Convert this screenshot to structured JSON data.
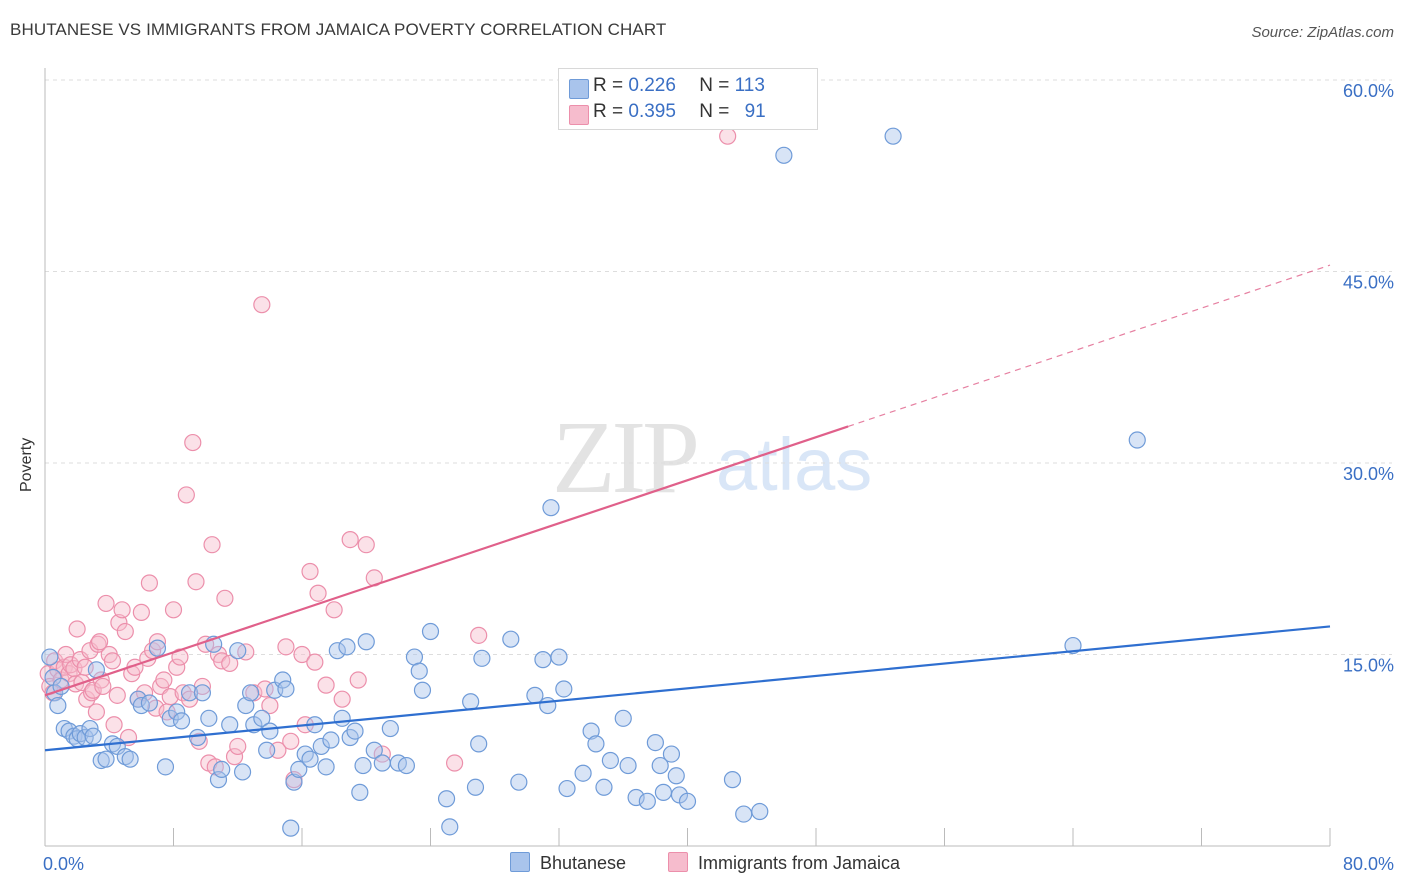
{
  "title": "BHUTANESE VS IMMIGRANTS FROM JAMAICA POVERTY CORRELATION CHART",
  "source": "Source: ZipAtlas.com",
  "watermark": {
    "zip": "ZIP",
    "atlas": "atlas"
  },
  "legend": {
    "rows": [
      {
        "r_label": "R =",
        "r_value": "0.226",
        "n_label": "N =",
        "n_value": "113"
      },
      {
        "r_label": "R =",
        "r_value": "0.395",
        "n_label": "N =",
        "n_value": "91"
      }
    ]
  },
  "colors": {
    "blue_fill": "#a9c4ec",
    "blue_stroke": "#6f9bd8",
    "blue_line": "#2f6fd0",
    "pink_fill": "#f6bccd",
    "pink_stroke": "#ec8fab",
    "pink_line": "#e0608a",
    "tick_text": "#3a6fc4",
    "grid": "#dddddd"
  },
  "chart_data": {
    "type": "scatter",
    "title": "BHUTANESE VS IMMIGRANTS FROM JAMAICA POVERTY CORRELATION CHART",
    "xlabel": "",
    "ylabel": "Poverty",
    "xlim": [
      0,
      80
    ],
    "ylim": [
      0,
      60
    ],
    "x_tick_labels": [
      "0.0%",
      "80.0%"
    ],
    "y_ticks": [
      15,
      30,
      45,
      60
    ],
    "y_tick_labels": [
      "15.0%",
      "30.0%",
      "45.0%",
      "60.0%"
    ],
    "grid": true,
    "series": [
      {
        "name": "Bhutanese",
        "r": 0.226,
        "n": 113,
        "trend": {
          "x": [
            0,
            80
          ],
          "y": [
            7.5,
            17.2
          ],
          "dashed_from": null
        },
        "points": [
          [
            0.3,
            14.8
          ],
          [
            0.5,
            13.2
          ],
          [
            0.6,
            12.0
          ],
          [
            0.8,
            11.0
          ],
          [
            1.0,
            12.5
          ],
          [
            1.2,
            9.2
          ],
          [
            1.5,
            9.0
          ],
          [
            1.8,
            8.6
          ],
          [
            2.0,
            8.4
          ],
          [
            2.2,
            8.8
          ],
          [
            2.5,
            8.5
          ],
          [
            2.8,
            9.2
          ],
          [
            3.0,
            8.6
          ],
          [
            3.2,
            13.8
          ],
          [
            3.5,
            6.7
          ],
          [
            3.8,
            6.8
          ],
          [
            4.2,
            8.0
          ],
          [
            4.5,
            7.8
          ],
          [
            5.0,
            7.0
          ],
          [
            5.3,
            6.8
          ],
          [
            5.8,
            11.5
          ],
          [
            6.0,
            11.0
          ],
          [
            6.5,
            11.2
          ],
          [
            7.0,
            15.5
          ],
          [
            7.5,
            6.2
          ],
          [
            7.8,
            10.0
          ],
          [
            8.2,
            10.5
          ],
          [
            8.5,
            9.8
          ],
          [
            9.0,
            12.0
          ],
          [
            9.5,
            8.5
          ],
          [
            9.8,
            12.0
          ],
          [
            10.2,
            10.0
          ],
          [
            10.5,
            15.8
          ],
          [
            10.8,
            5.2
          ],
          [
            11.0,
            6.0
          ],
          [
            11.5,
            9.5
          ],
          [
            12.0,
            15.3
          ],
          [
            12.3,
            5.8
          ],
          [
            12.5,
            11.0
          ],
          [
            12.8,
            12.0
          ],
          [
            13.0,
            9.5
          ],
          [
            13.5,
            10.0
          ],
          [
            13.8,
            7.5
          ],
          [
            14.0,
            9.0
          ],
          [
            14.3,
            12.2
          ],
          [
            14.8,
            13.0
          ],
          [
            15.0,
            12.3
          ],
          [
            15.3,
            1.4
          ],
          [
            15.5,
            5.0
          ],
          [
            15.8,
            6.0
          ],
          [
            16.2,
            7.2
          ],
          [
            16.5,
            6.8
          ],
          [
            16.8,
            9.5
          ],
          [
            17.2,
            7.8
          ],
          [
            17.5,
            6.2
          ],
          [
            17.8,
            8.3
          ],
          [
            18.2,
            15.3
          ],
          [
            18.5,
            10.0
          ],
          [
            18.8,
            15.6
          ],
          [
            19.0,
            8.5
          ],
          [
            19.3,
            9.0
          ],
          [
            19.6,
            4.2
          ],
          [
            19.8,
            6.3
          ],
          [
            20.0,
            16.0
          ],
          [
            20.5,
            7.5
          ],
          [
            21.0,
            6.5
          ],
          [
            21.5,
            9.2
          ],
          [
            22.0,
            6.5
          ],
          [
            22.5,
            6.3
          ],
          [
            23.0,
            14.8
          ],
          [
            23.3,
            13.7
          ],
          [
            23.5,
            12.2
          ],
          [
            24.0,
            16.8
          ],
          [
            25.0,
            3.7
          ],
          [
            25.2,
            1.5
          ],
          [
            26.5,
            11.3
          ],
          [
            26.8,
            4.6
          ],
          [
            27.0,
            8.0
          ],
          [
            27.2,
            14.7
          ],
          [
            29.0,
            16.2
          ],
          [
            29.5,
            5.0
          ],
          [
            30.5,
            11.8
          ],
          [
            31.0,
            14.6
          ],
          [
            31.3,
            11.0
          ],
          [
            31.5,
            26.5
          ],
          [
            32.0,
            14.8
          ],
          [
            32.3,
            12.3
          ],
          [
            32.5,
            4.5
          ],
          [
            33.5,
            5.7
          ],
          [
            34.0,
            9.0
          ],
          [
            34.3,
            8.0
          ],
          [
            34.8,
            4.6
          ],
          [
            35.2,
            6.7
          ],
          [
            36.0,
            10.0
          ],
          [
            36.3,
            6.3
          ],
          [
            36.8,
            3.8
          ],
          [
            37.5,
            3.5
          ],
          [
            38.0,
            8.1
          ],
          [
            38.3,
            6.3
          ],
          [
            38.5,
            4.2
          ],
          [
            39.0,
            7.2
          ],
          [
            39.3,
            5.5
          ],
          [
            39.5,
            4.0
          ],
          [
            40.0,
            3.5
          ],
          [
            42.8,
            5.2
          ],
          [
            43.5,
            2.5
          ],
          [
            44.5,
            2.7
          ],
          [
            46.0,
            54.1
          ],
          [
            52.8,
            55.6
          ],
          [
            64.0,
            15.7
          ],
          [
            68.0,
            31.8
          ]
        ]
      },
      {
        "name": "Immigrants from Jamaica",
        "r": 0.395,
        "n": 91,
        "trend": {
          "x": [
            0,
            80
          ],
          "y": [
            11.8,
            45.5
          ],
          "dashed_from": 50
        },
        "points": [
          [
            0.2,
            13.5
          ],
          [
            0.3,
            12.5
          ],
          [
            0.5,
            12.0
          ],
          [
            0.6,
            14.5
          ],
          [
            0.8,
            13.8
          ],
          [
            1.0,
            13.0
          ],
          [
            1.2,
            14.0
          ],
          [
            1.3,
            15.0
          ],
          [
            1.5,
            13.5
          ],
          [
            1.6,
            14.2
          ],
          [
            1.8,
            13.9
          ],
          [
            1.9,
            12.7
          ],
          [
            2.0,
            17.0
          ],
          [
            2.2,
            14.6
          ],
          [
            2.3,
            12.8
          ],
          [
            2.5,
            14.0
          ],
          [
            2.6,
            11.5
          ],
          [
            2.8,
            15.3
          ],
          [
            2.9,
            12.0
          ],
          [
            3.0,
            12.2
          ],
          [
            3.2,
            10.5
          ],
          [
            3.3,
            15.8
          ],
          [
            3.4,
            16.0
          ],
          [
            3.5,
            13.0
          ],
          [
            3.6,
            12.5
          ],
          [
            3.8,
            19.0
          ],
          [
            4.0,
            15.0
          ],
          [
            4.2,
            14.5
          ],
          [
            4.3,
            9.5
          ],
          [
            4.5,
            11.8
          ],
          [
            4.6,
            17.5
          ],
          [
            4.8,
            18.5
          ],
          [
            5.0,
            16.8
          ],
          [
            5.2,
            8.5
          ],
          [
            5.4,
            13.5
          ],
          [
            5.6,
            14.0
          ],
          [
            5.8,
            11.5
          ],
          [
            6.0,
            18.3
          ],
          [
            6.2,
            12.0
          ],
          [
            6.4,
            14.7
          ],
          [
            6.5,
            20.6
          ],
          [
            6.7,
            15.3
          ],
          [
            6.9,
            10.8
          ],
          [
            7.0,
            16.0
          ],
          [
            7.2,
            12.5
          ],
          [
            7.4,
            13.0
          ],
          [
            7.6,
            10.5
          ],
          [
            7.8,
            11.7
          ],
          [
            8.0,
            18.5
          ],
          [
            8.2,
            14.0
          ],
          [
            8.4,
            14.8
          ],
          [
            8.6,
            12.0
          ],
          [
            8.8,
            27.5
          ],
          [
            9.0,
            11.5
          ],
          [
            9.2,
            31.6
          ],
          [
            9.4,
            20.7
          ],
          [
            9.6,
            8.2
          ],
          [
            9.8,
            12.5
          ],
          [
            10.0,
            15.8
          ],
          [
            10.2,
            6.5
          ],
          [
            10.4,
            23.6
          ],
          [
            10.6,
            6.2
          ],
          [
            10.8,
            15.0
          ],
          [
            11.0,
            14.5
          ],
          [
            11.2,
            19.4
          ],
          [
            11.5,
            14.3
          ],
          [
            11.8,
            7.0
          ],
          [
            12.0,
            7.8
          ],
          [
            12.5,
            15.2
          ],
          [
            13.0,
            12.0
          ],
          [
            13.5,
            42.4
          ],
          [
            13.7,
            12.3
          ],
          [
            14.0,
            11.0
          ],
          [
            14.5,
            7.5
          ],
          [
            15.0,
            15.6
          ],
          [
            15.3,
            8.2
          ],
          [
            15.5,
            5.2
          ],
          [
            16.0,
            15.0
          ],
          [
            16.2,
            9.5
          ],
          [
            16.5,
            21.5
          ],
          [
            16.8,
            14.4
          ],
          [
            17.0,
            19.8
          ],
          [
            17.5,
            12.6
          ],
          [
            18.0,
            18.5
          ],
          [
            18.5,
            11.5
          ],
          [
            19.0,
            24.0
          ],
          [
            19.5,
            13.0
          ],
          [
            20.0,
            23.6
          ],
          [
            20.5,
            21.0
          ],
          [
            21.0,
            7.2
          ],
          [
            25.5,
            6.5
          ],
          [
            27.0,
            16.5
          ],
          [
            42.5,
            55.6
          ]
        ]
      }
    ]
  }
}
